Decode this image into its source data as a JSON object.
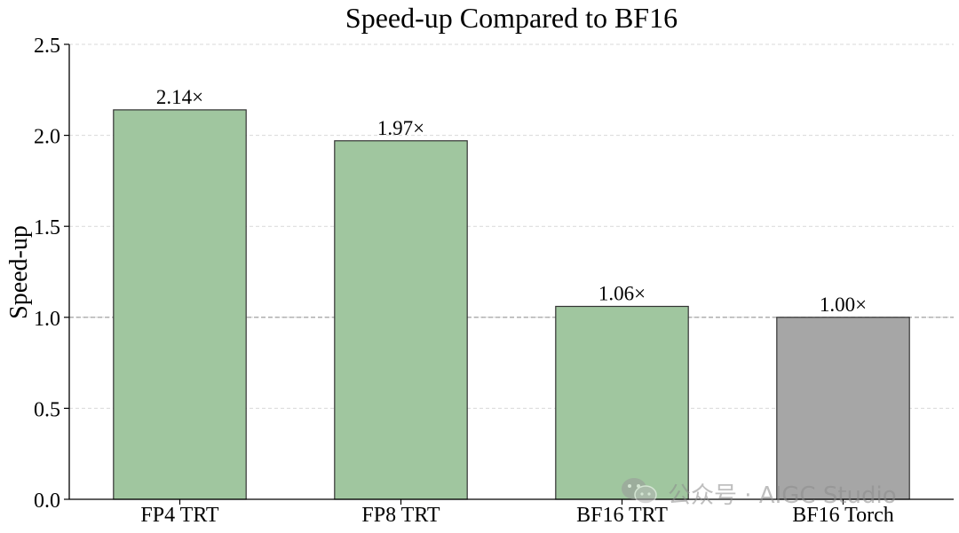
{
  "chart_data": {
    "type": "bar",
    "title": "Speed-up Compared to BF16",
    "xlabel": "",
    "ylabel": "Speed-up",
    "ylim": [
      0,
      2.5
    ],
    "yticks": [
      "0.0",
      "0.5",
      "1.0",
      "1.5",
      "2.0",
      "2.5"
    ],
    "categories": [
      "FP4 TRT",
      "FP8 TRT",
      "BF16 TRT",
      "BF16 Torch"
    ],
    "values": [
      2.14,
      1.97,
      1.06,
      1.0
    ],
    "data_labels": [
      "2.14×",
      "1.97×",
      "1.06×",
      "1.00×"
    ],
    "bar_colors": [
      "#a0c69f",
      "#a0c69f",
      "#a0c69f",
      "#a6a6a6"
    ],
    "bar_edge_color": "#333333",
    "reference_line": 1.0,
    "grid": "y-dashed",
    "legend": "none"
  },
  "watermark": {
    "text": "公众号 · AIGC Studio",
    "icon": "wechat-icon"
  }
}
